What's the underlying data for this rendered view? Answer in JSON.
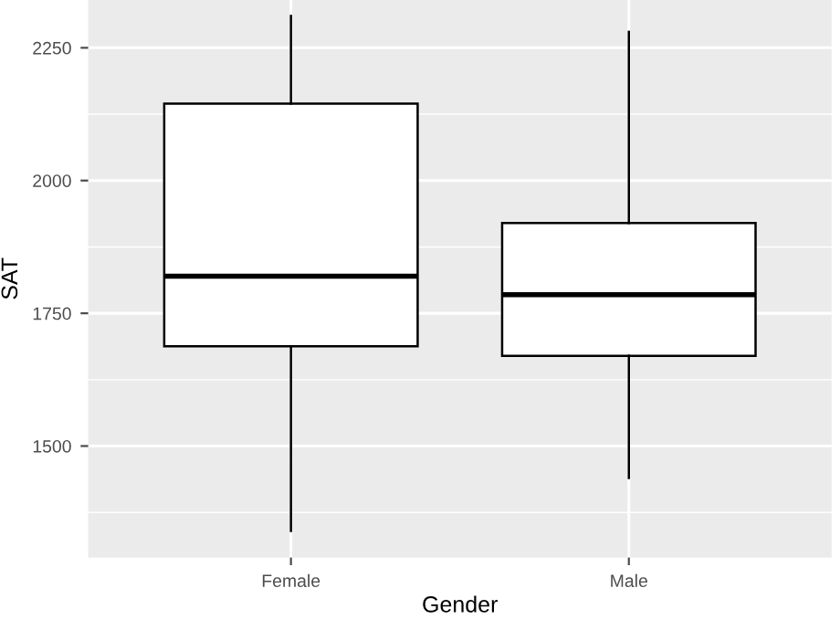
{
  "chart_data": {
    "type": "box",
    "xlabel": "Gender",
    "ylabel": "SAT",
    "categories": [
      "Female",
      "Male"
    ],
    "boxes": [
      {
        "low": 1340,
        "q1": 1688,
        "median": 1820,
        "q3": 2145,
        "high": 2310
      },
      {
        "low": 1440,
        "q1": 1670,
        "median": 1785,
        "q3": 1920,
        "high": 2280
      }
    ],
    "ylim": [
      1290,
      2340
    ],
    "yticks": [
      1500,
      1750,
      2000,
      2250
    ],
    "grid": true
  }
}
